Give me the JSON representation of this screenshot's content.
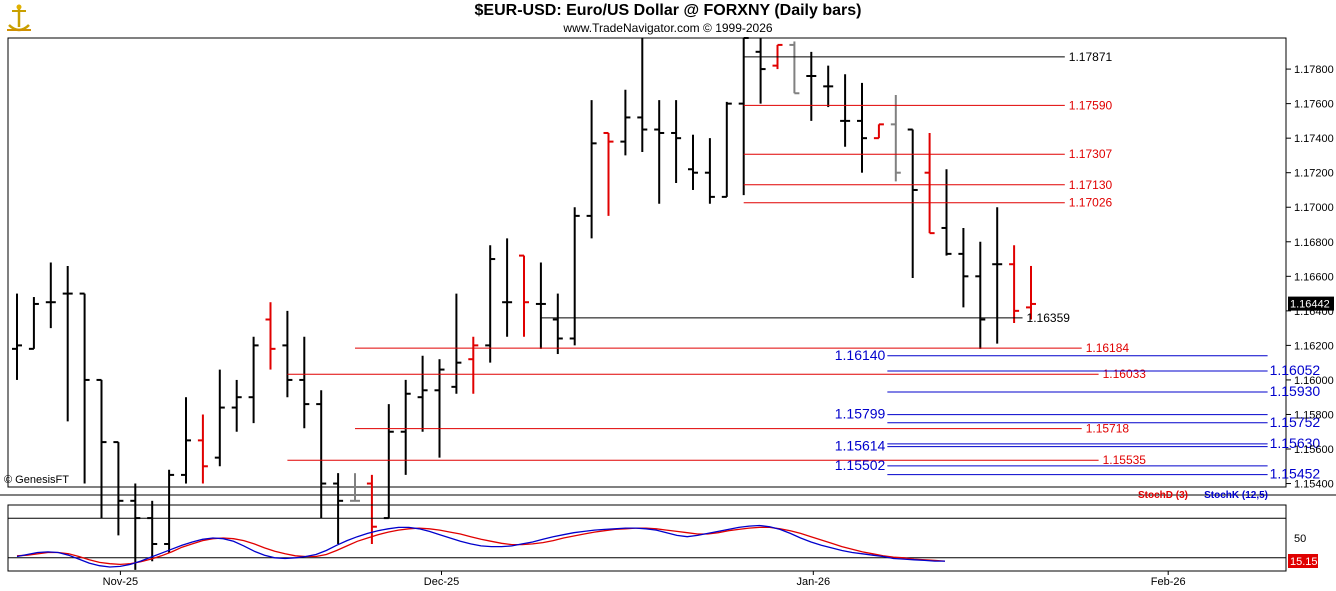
{
  "header": {
    "title": "$EUR-USD:  Euro/US Dollar @ FORXNY  (Daily bars)",
    "subtitle": "www.TradeNavigator.com © 1999-2026",
    "copyright": "© GenesisFT"
  },
  "colors": {
    "up": "#000000",
    "down": "#e00000",
    "neutral": "#808080",
    "resistance": "#e00000",
    "support": "#0000cc",
    "stoch_d": "#e00000",
    "stoch_k": "#0000cc",
    "price_tag_bg": "#000000",
    "stoch_tag_bg": "#e00000"
  },
  "chart_data": [
    {
      "type": "ohlc",
      "ylim": [
        1.1538,
        1.1798
      ],
      "y_ticks": [
        "1.17800",
        "1.17600",
        "1.17400",
        "1.17200",
        "1.17000",
        "1.16800",
        "1.16600",
        "1.16400",
        "1.16200",
        "1.16000",
        "1.15800",
        "1.15600",
        "1.15400"
      ],
      "x_labels": [
        {
          "label": "Nov-25",
          "bar": 6
        },
        {
          "label": "Dec-25",
          "bar": 25
        },
        {
          "label": "Jan-26",
          "bar": 47
        },
        {
          "label": "Feb-26",
          "bar": 68
        }
      ],
      "last_price": "1.16442",
      "bars": [
        {
          "o": 1.1618,
          "h": 1.165,
          "l": 1.16,
          "c": 1.162,
          "col": "up"
        },
        {
          "o": 1.1618,
          "h": 1.1648,
          "l": 1.1618,
          "c": 1.1644,
          "col": "up"
        },
        {
          "o": 1.1645,
          "h": 1.1668,
          "l": 1.163,
          "c": 1.1645,
          "col": "up"
        },
        {
          "o": 1.165,
          "h": 1.1666,
          "l": 1.1576,
          "c": 1.165,
          "col": "up"
        },
        {
          "o": 1.165,
          "h": 1.165,
          "l": 1.154,
          "c": 1.16,
          "col": "up"
        },
        {
          "o": 1.16,
          "h": 1.16,
          "l": 1.152,
          "c": 1.1564,
          "col": "up"
        },
        {
          "o": 1.1564,
          "h": 1.1564,
          "l": 1.151,
          "c": 1.153,
          "col": "up"
        },
        {
          "o": 1.153,
          "h": 1.154,
          "l": 1.149,
          "c": 1.152,
          "col": "up"
        },
        {
          "o": 1.152,
          "h": 1.153,
          "l": 1.1495,
          "c": 1.1505,
          "col": "up"
        },
        {
          "o": 1.1505,
          "h": 1.1548,
          "l": 1.15,
          "c": 1.1545,
          "col": "up"
        },
        {
          "o": 1.1545,
          "h": 1.159,
          "l": 1.154,
          "c": 1.1565,
          "col": "up"
        },
        {
          "o": 1.1565,
          "h": 1.158,
          "l": 1.154,
          "c": 1.155,
          "col": "down"
        },
        {
          "o": 1.1555,
          "h": 1.1606,
          "l": 1.155,
          "c": 1.1584,
          "col": "up"
        },
        {
          "o": 1.1584,
          "h": 1.16,
          "l": 1.157,
          "c": 1.159,
          "col": "up"
        },
        {
          "o": 1.159,
          "h": 1.1625,
          "l": 1.1575,
          "c": 1.162,
          "col": "up"
        },
        {
          "o": 1.1635,
          "h": 1.1645,
          "l": 1.1606,
          "c": 1.1618,
          "col": "down"
        },
        {
          "o": 1.162,
          "h": 1.164,
          "l": 1.159,
          "c": 1.16,
          "col": "up"
        },
        {
          "o": 1.16,
          "h": 1.1625,
          "l": 1.1572,
          "c": 1.1586,
          "col": "up"
        },
        {
          "o": 1.1586,
          "h": 1.1594,
          "l": 1.152,
          "c": 1.154,
          "col": "up"
        },
        {
          "o": 1.154,
          "h": 1.1546,
          "l": 1.1505,
          "c": 1.153,
          "col": "up"
        },
        {
          "o": 1.153,
          "h": 1.1546,
          "l": 1.153,
          "c": 1.153,
          "col": "neutral"
        },
        {
          "o": 1.154,
          "h": 1.1545,
          "l": 1.1505,
          "c": 1.1515,
          "col": "down"
        },
        {
          "o": 1.152,
          "h": 1.1586,
          "l": 1.152,
          "c": 1.157,
          "col": "up"
        },
        {
          "o": 1.157,
          "h": 1.16,
          "l": 1.1545,
          "c": 1.1592,
          "col": "up"
        },
        {
          "o": 1.159,
          "h": 1.1614,
          "l": 1.157,
          "c": 1.1594,
          "col": "up"
        },
        {
          "o": 1.1594,
          "h": 1.1612,
          "l": 1.1555,
          "c": 1.1606,
          "col": "up"
        },
        {
          "o": 1.1596,
          "h": 1.165,
          "l": 1.1592,
          "c": 1.161,
          "col": "up"
        },
        {
          "o": 1.1612,
          "h": 1.1625,
          "l": 1.1592,
          "c": 1.162,
          "col": "down"
        },
        {
          "o": 1.162,
          "h": 1.1678,
          "l": 1.161,
          "c": 1.167,
          "col": "up"
        },
        {
          "o": 1.1645,
          "h": 1.1682,
          "l": 1.1625,
          "c": 1.1645,
          "col": "up"
        },
        {
          "o": 1.1672,
          "h": 1.1672,
          "l": 1.1625,
          "c": 1.1645,
          "col": "down"
        },
        {
          "o": 1.1644,
          "h": 1.1668,
          "l": 1.1618,
          "c": 1.1644,
          "col": "up"
        },
        {
          "o": 1.1635,
          "h": 1.165,
          "l": 1.1615,
          "c": 1.1624,
          "col": "up"
        },
        {
          "o": 1.1624,
          "h": 1.17,
          "l": 1.162,
          "c": 1.1695,
          "col": "up"
        },
        {
          "o": 1.1695,
          "h": 1.1762,
          "l": 1.1682,
          "c": 1.1737,
          "col": "up"
        },
        {
          "o": 1.1743,
          "h": 1.1743,
          "l": 1.1695,
          "c": 1.1738,
          "col": "down"
        },
        {
          "o": 1.1738,
          "h": 1.1768,
          "l": 1.173,
          "c": 1.1752,
          "col": "up"
        },
        {
          "o": 1.1752,
          "h": 1.1798,
          "l": 1.1732,
          "c": 1.1745,
          "col": "up"
        },
        {
          "o": 1.1745,
          "h": 1.1762,
          "l": 1.1702,
          "c": 1.1743,
          "col": "up"
        },
        {
          "o": 1.1743,
          "h": 1.1762,
          "l": 1.1714,
          "c": 1.174,
          "col": "up"
        },
        {
          "o": 1.1722,
          "h": 1.1742,
          "l": 1.171,
          "c": 1.172,
          "col": "up"
        },
        {
          "o": 1.172,
          "h": 1.174,
          "l": 1.1702,
          "c": 1.1706,
          "col": "up"
        },
        {
          "o": 1.1706,
          "h": 1.1761,
          "l": 1.1706,
          "c": 1.176,
          "col": "up"
        },
        {
          "o": 1.176,
          "h": 1.1798,
          "l": 1.1707,
          "c": 1.1798,
          "col": "up"
        },
        {
          "o": 1.179,
          "h": 1.1798,
          "l": 1.176,
          "c": 1.178,
          "col": "up"
        },
        {
          "o": 1.1782,
          "h": 1.1794,
          "l": 1.178,
          "c": 1.1794,
          "col": "down"
        },
        {
          "o": 1.1794,
          "h": 1.1796,
          "l": 1.1766,
          "c": 1.1766,
          "col": "neutral"
        },
        {
          "o": 1.1776,
          "h": 1.179,
          "l": 1.175,
          "c": 1.1776,
          "col": "up"
        },
        {
          "o": 1.177,
          "h": 1.1782,
          "l": 1.1758,
          "c": 1.177,
          "col": "up"
        },
        {
          "o": 1.175,
          "h": 1.1777,
          "l": 1.1735,
          "c": 1.175,
          "col": "up"
        },
        {
          "o": 1.175,
          "h": 1.1772,
          "l": 1.172,
          "c": 1.174,
          "col": "up"
        },
        {
          "o": 1.174,
          "h": 1.1748,
          "l": 1.174,
          "c": 1.1748,
          "col": "down"
        },
        {
          "o": 1.1748,
          "h": 1.1765,
          "l": 1.1715,
          "c": 1.172,
          "col": "neutral"
        },
        {
          "o": 1.1745,
          "h": 1.1745,
          "l": 1.1659,
          "c": 1.171,
          "col": "up"
        },
        {
          "o": 1.172,
          "h": 1.1743,
          "l": 1.1685,
          "c": 1.1685,
          "col": "down"
        },
        {
          "o": 1.1688,
          "h": 1.1722,
          "l": 1.1672,
          "c": 1.1673,
          "col": "up"
        },
        {
          "o": 1.1673,
          "h": 1.1688,
          "l": 1.1642,
          "c": 1.166,
          "col": "up"
        },
        {
          "o": 1.166,
          "h": 1.168,
          "l": 1.1618,
          "c": 1.1635,
          "col": "up"
        },
        {
          "o": 1.1667,
          "h": 1.17,
          "l": 1.1621,
          "c": 1.1667,
          "col": "up"
        },
        {
          "o": 1.1667,
          "h": 1.1678,
          "l": 1.1633,
          "c": 1.164,
          "col": "down"
        },
        {
          "o": 1.1642,
          "h": 1.1666,
          "l": 1.1635,
          "c": 1.1644,
          "col": "down"
        }
      ],
      "levels": [
        {
          "value": "1.17871",
          "v": 1.17871,
          "color": "black",
          "from_bar": 43,
          "to_bar": 62
        },
        {
          "value": "1.17590",
          "v": 1.1759,
          "color": "red",
          "from_bar": 43,
          "to_bar": 62
        },
        {
          "value": "1.17307",
          "v": 1.17307,
          "color": "red",
          "from_bar": 43,
          "to_bar": 62
        },
        {
          "value": "1.17130",
          "v": 1.1713,
          "color": "red",
          "from_bar": 43,
          "to_bar": 62
        },
        {
          "value": "1.17026",
          "v": 1.17026,
          "color": "red",
          "from_bar": 43,
          "to_bar": 62
        },
        {
          "value": "1.16359",
          "v": 1.16359,
          "color": "black",
          "from_bar": 31,
          "to_bar": 59.5
        },
        {
          "value": "1.16184",
          "v": 1.16184,
          "color": "red",
          "from_bar": 20,
          "to_bar": 63
        },
        {
          "value": "1.16033",
          "v": 1.16033,
          "color": "red",
          "from_bar": 16,
          "to_bar": 64
        },
        {
          "value": "1.15718",
          "v": 1.15718,
          "color": "red",
          "from_bar": 20,
          "to_bar": 63
        },
        {
          "value": "1.15535",
          "v": 1.15535,
          "color": "red",
          "from_bar": 16,
          "to_bar": 64
        },
        {
          "value": "1.16140",
          "v": 1.1614,
          "color": "blue",
          "from_bar": 51.5,
          "to_bar": 74
        },
        {
          "value": "1.16052",
          "v": 1.16052,
          "color": "blue",
          "from_bar": 51.5,
          "to_bar": 74
        },
        {
          "value": "1.15930",
          "v": 1.1593,
          "color": "blue",
          "from_bar": 51.5,
          "to_bar": 74
        },
        {
          "value": "1.15799",
          "v": 1.15799,
          "color": "blue",
          "from_bar": 51.5,
          "to_bar": 74
        },
        {
          "value": "1.15752",
          "v": 1.15752,
          "color": "blue",
          "from_bar": 51.5,
          "to_bar": 74
        },
        {
          "value": "1.15630",
          "v": 1.1563,
          "color": "blue",
          "from_bar": 51.5,
          "to_bar": 74
        },
        {
          "value": "1.15614",
          "v": 1.15614,
          "color": "blue",
          "from_bar": 51.5,
          "to_bar": 74
        },
        {
          "value": "1.15502",
          "v": 1.15502,
          "color": "blue",
          "from_bar": 51.5,
          "to_bar": 74
        },
        {
          "value": "1.15452",
          "v": 1.15452,
          "color": "blue",
          "from_bar": 51.5,
          "to_bar": 74
        }
      ]
    },
    {
      "type": "line",
      "ylim": [
        0,
        100
      ],
      "y_ticks": [
        "50"
      ],
      "ref_lines": [
        80,
        20
      ],
      "last_value": "15.15",
      "series": [
        {
          "name": "StochD (3)",
          "color": "red",
          "values": [
            23,
            24,
            26,
            28,
            28,
            26,
            22,
            17,
            13,
            11,
            10,
            11,
            14,
            18,
            23,
            29,
            36,
            41,
            46,
            49,
            50,
            49,
            46,
            41,
            35,
            30,
            26,
            23,
            22,
            22,
            25,
            31,
            38,
            45,
            50,
            55,
            59,
            62,
            64,
            65,
            64,
            62,
            59,
            56,
            52,
            48,
            45,
            42,
            40,
            40,
            41,
            43,
            46,
            50,
            53,
            56,
            59,
            61,
            63,
            64,
            65,
            65,
            64,
            62,
            60,
            58,
            56,
            56,
            58,
            61,
            63,
            65,
            66,
            66,
            64,
            61,
            57,
            52,
            47,
            42,
            37,
            33,
            29,
            26,
            23,
            21,
            20,
            18,
            17,
            16,
            15
          ]
        },
        {
          "name": "StochK (12,5)",
          "color": "blue",
          "values": [
            22,
            25,
            28,
            29,
            28,
            24,
            18,
            12,
            8,
            6,
            7,
            10,
            15,
            21,
            27,
            33,
            39,
            44,
            48,
            50,
            49,
            45,
            38,
            30,
            24,
            20,
            19,
            20,
            22,
            25,
            31,
            39,
            46,
            52,
            57,
            61,
            64,
            66,
            66,
            64,
            60,
            55,
            50,
            45,
            41,
            38,
            37,
            37,
            38,
            41,
            44,
            48,
            52,
            55,
            58,
            60,
            62,
            63,
            64,
            65,
            65,
            64,
            62,
            58,
            54,
            52,
            54,
            57,
            60,
            63,
            66,
            68,
            69,
            67,
            63,
            57,
            50,
            44,
            39,
            35,
            31,
            28,
            26,
            24,
            22,
            19,
            18,
            17,
            16,
            15,
            15
          ]
        }
      ]
    }
  ]
}
